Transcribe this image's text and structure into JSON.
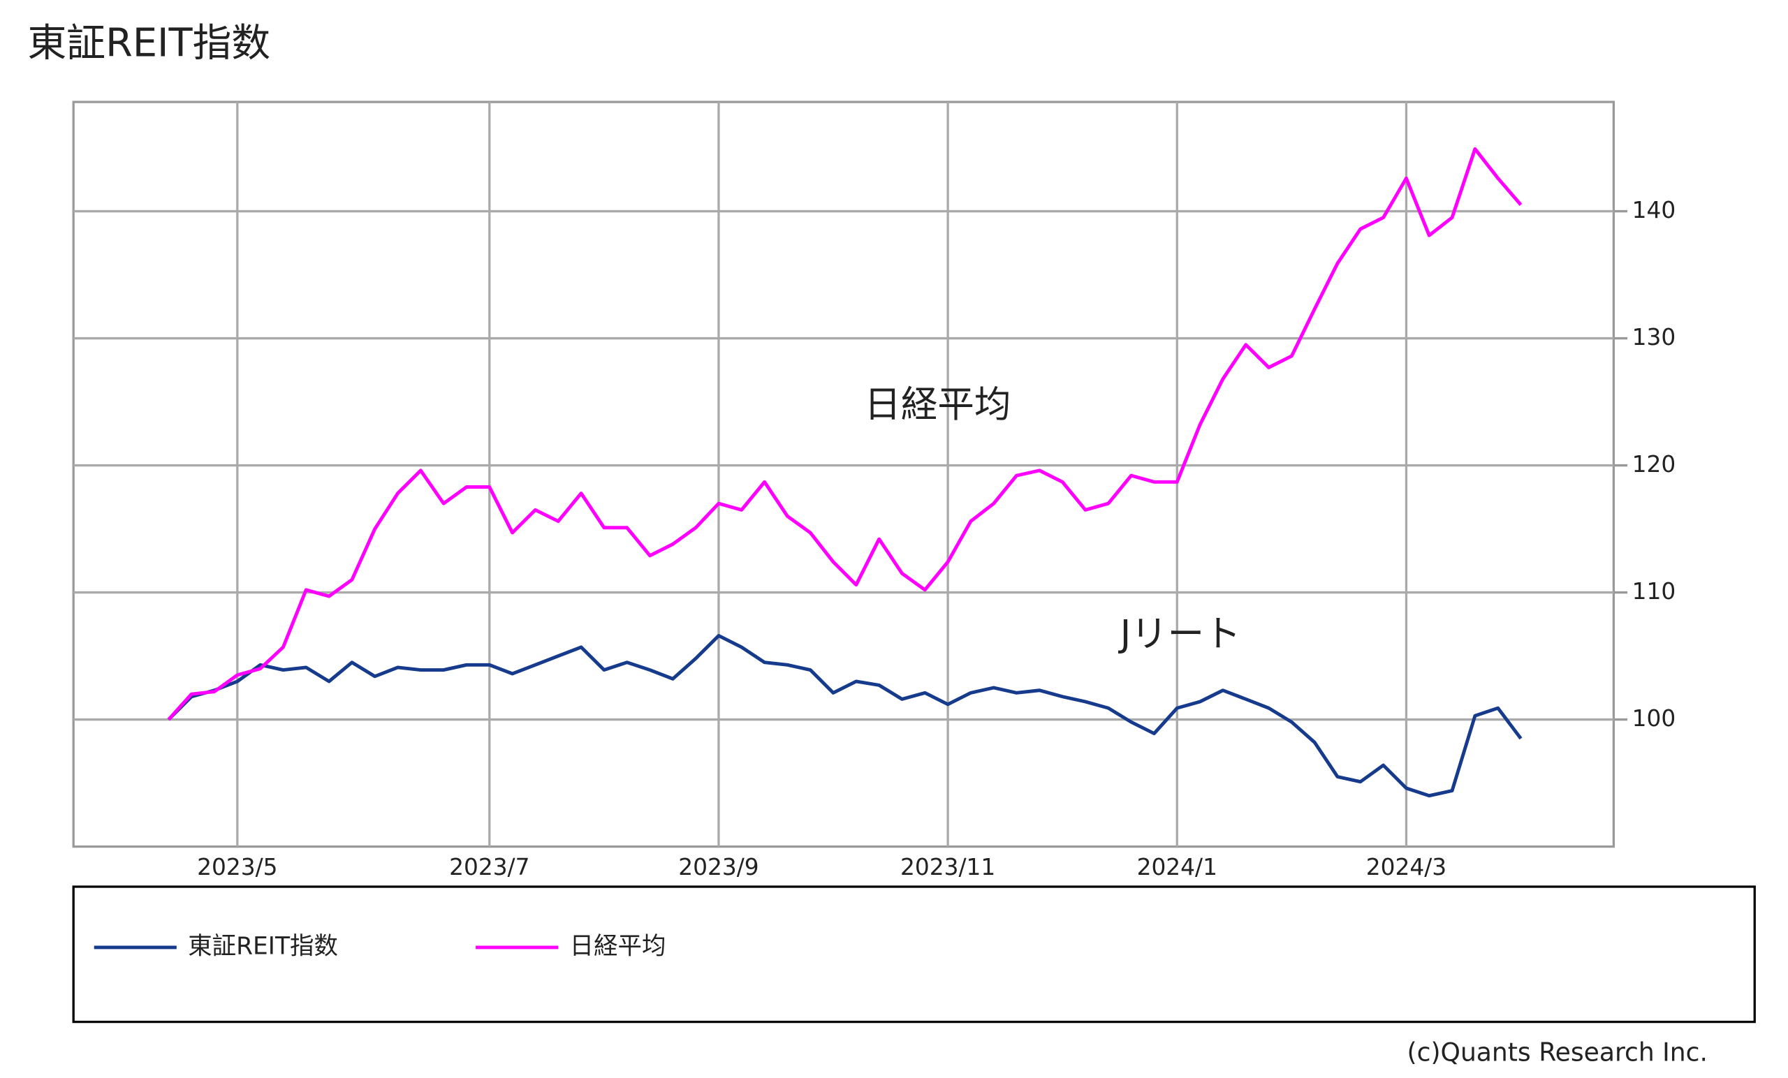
{
  "chart_data": {
    "type": "line",
    "title": "東証REIT指数",
    "categories": [
      null,
      null,
      null,
      "2023/5",
      null,
      null,
      null,
      null,
      null,
      null,
      null,
      null,
      null,
      null,
      "2023/7",
      null,
      null,
      null,
      null,
      null,
      null,
      null,
      null,
      null,
      "2023/9",
      null,
      null,
      null,
      null,
      null,
      null,
      null,
      null,
      null,
      "2023/11",
      null,
      null,
      null,
      null,
      null,
      null,
      null,
      null,
      null,
      "2024/1",
      null,
      null,
      null,
      null,
      null,
      null,
      null,
      null,
      null,
      "2024/3",
      null,
      null,
      null,
      null,
      null
    ],
    "series": [
      {
        "name": "東証REIT指数",
        "color": "#163b8c",
        "values": [
          100,
          101.8,
          102.3,
          103,
          104.3,
          103.9,
          104.1,
          103,
          104.5,
          103.4,
          104.1,
          103.9,
          103.9,
          104.3,
          104.3,
          103.6,
          104.3,
          105,
          105.7,
          103.9,
          104.5,
          103.9,
          103.2,
          104.8,
          106.6,
          105.7,
          104.5,
          104.3,
          103.9,
          102.1,
          103,
          102.7,
          101.6,
          102.1,
          101.2,
          102.1,
          102.5,
          102.1,
          102.3,
          101.8,
          101.4,
          100.9,
          99.8,
          98.9,
          100.9,
          101.4,
          102.3,
          101.6,
          100.9,
          99.8,
          98.2,
          95.5,
          95.1,
          96.4,
          94.6,
          94,
          94.4,
          100.3,
          100.9,
          98.5
        ]
      },
      {
        "name": "日経平均",
        "color": "#ff00ff",
        "values": [
          100,
          102,
          102.2,
          103.5,
          104,
          105.7,
          110.2,
          109.7,
          111,
          115,
          117.8,
          119.6,
          117,
          118.3,
          118.3,
          114.7,
          116.5,
          115.6,
          117.8,
          115.1,
          115.1,
          112.9,
          113.8,
          115.1,
          117,
          116.5,
          118.7,
          116,
          114.7,
          112.4,
          110.6,
          114.2,
          111.5,
          110.2,
          112.4,
          115.6,
          117,
          119.2,
          119.6,
          118.7,
          116.5,
          117,
          119.2,
          118.7,
          118.7,
          123.2,
          126.8,
          129.5,
          127.7,
          128.6,
          132.3,
          135.9,
          138.6,
          139.5,
          142.6,
          138.1,
          139.5,
          144.9,
          142.6,
          140.5
        ]
      }
    ],
    "ylim": [
      90,
      148.6
    ],
    "yticks": [
      100,
      110,
      120,
      130,
      140
    ],
    "grid": true,
    "annotations": [
      {
        "text": "日経平均"
      },
      {
        "text": "Jリート"
      }
    ],
    "credit": "(c)Quants Research Inc."
  }
}
